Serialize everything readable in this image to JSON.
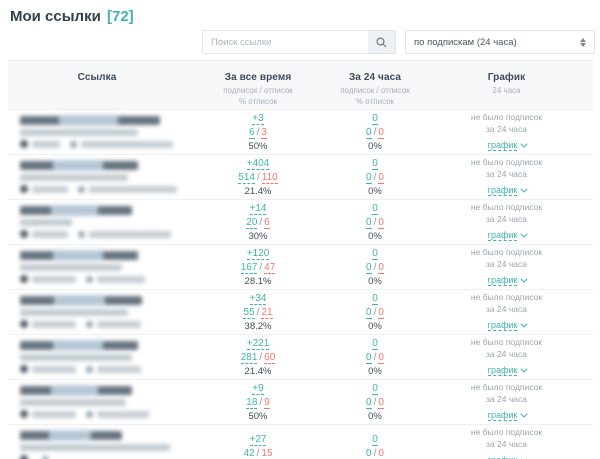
{
  "page": {
    "title": "Мои ссылки",
    "count": "[72]"
  },
  "toolbar": {
    "search_placeholder": "Поиск ссылки",
    "sort_value": "по подпискам (24 часа)"
  },
  "table": {
    "headers": {
      "link": "Ссылка",
      "all_time": "За все время",
      "all_time_sub1": "подписок / отписок",
      "all_time_sub2": "% отписок",
      "day": "За 24 часа",
      "day_sub1": "подписок / отписок",
      "day_sub2": "% отписок",
      "chart": "График",
      "chart_sub": "24 часа"
    },
    "no_subs_line1": "не было подписок",
    "no_subs_line2": "за 24 часа",
    "chart_link": "график",
    "rows": [
      {
        "total": {
          "delta": "+3",
          "subs": "6",
          "unsubs": "3",
          "pct": "50%"
        },
        "day": {
          "delta": "0",
          "subs": "0",
          "unsubs": "0",
          "pct": "0%"
        },
        "nw": 140,
        "uw": 118,
        "m1": 28,
        "m2": 92
      },
      {
        "total": {
          "delta": "+404",
          "subs": "514",
          "unsubs": "110",
          "pct": "21.4%"
        },
        "day": {
          "delta": "0",
          "subs": "0",
          "unsubs": "0",
          "pct": "0%"
        },
        "nw": 118,
        "uw": 108,
        "m1": 36,
        "m2": 88
      },
      {
        "total": {
          "delta": "+14",
          "subs": "20",
          "unsubs": "6",
          "pct": "30%"
        },
        "day": {
          "delta": "0",
          "subs": "0",
          "unsubs": "0",
          "pct": "0%"
        },
        "nw": 112,
        "uw": 52,
        "m1": 36,
        "m2": 82
      },
      {
        "total": {
          "delta": "+120",
          "subs": "167",
          "unsubs": "47",
          "pct": "28.1%"
        },
        "day": {
          "delta": "0",
          "subs": "0",
          "unsubs": "0",
          "pct": "0%"
        },
        "nw": 118,
        "uw": 102,
        "m1": 44,
        "m2": 48
      },
      {
        "total": {
          "delta": "+34",
          "subs": "55",
          "unsubs": "21",
          "pct": "38.2%"
        },
        "day": {
          "delta": "0",
          "subs": "0",
          "unsubs": "0",
          "pct": "0%"
        },
        "nw": 122,
        "uw": 108,
        "m1": 44,
        "m2": 44
      },
      {
        "total": {
          "delta": "+221",
          "subs": "281",
          "unsubs": "60",
          "pct": "21.4%"
        },
        "day": {
          "delta": "0",
          "subs": "0",
          "unsubs": "0",
          "pct": "0%"
        },
        "nw": 118,
        "uw": 112,
        "m1": 44,
        "m2": 44
      },
      {
        "total": {
          "delta": "+9",
          "subs": "18",
          "unsubs": "9",
          "pct": "50%"
        },
        "day": {
          "delta": "0",
          "subs": "0",
          "unsubs": "0",
          "pct": "0%"
        },
        "nw": 112,
        "uw": 106,
        "m1": 44,
        "m2": 52
      },
      {
        "total": {
          "delta": "+27",
          "subs": "42",
          "unsubs": "15",
          "pct": ""
        },
        "day": {
          "delta": "0",
          "subs": "0",
          "unsubs": "0",
          "pct": ""
        },
        "nw": 102,
        "uw": 150,
        "m1": 0,
        "m2": 0
      }
    ]
  }
}
